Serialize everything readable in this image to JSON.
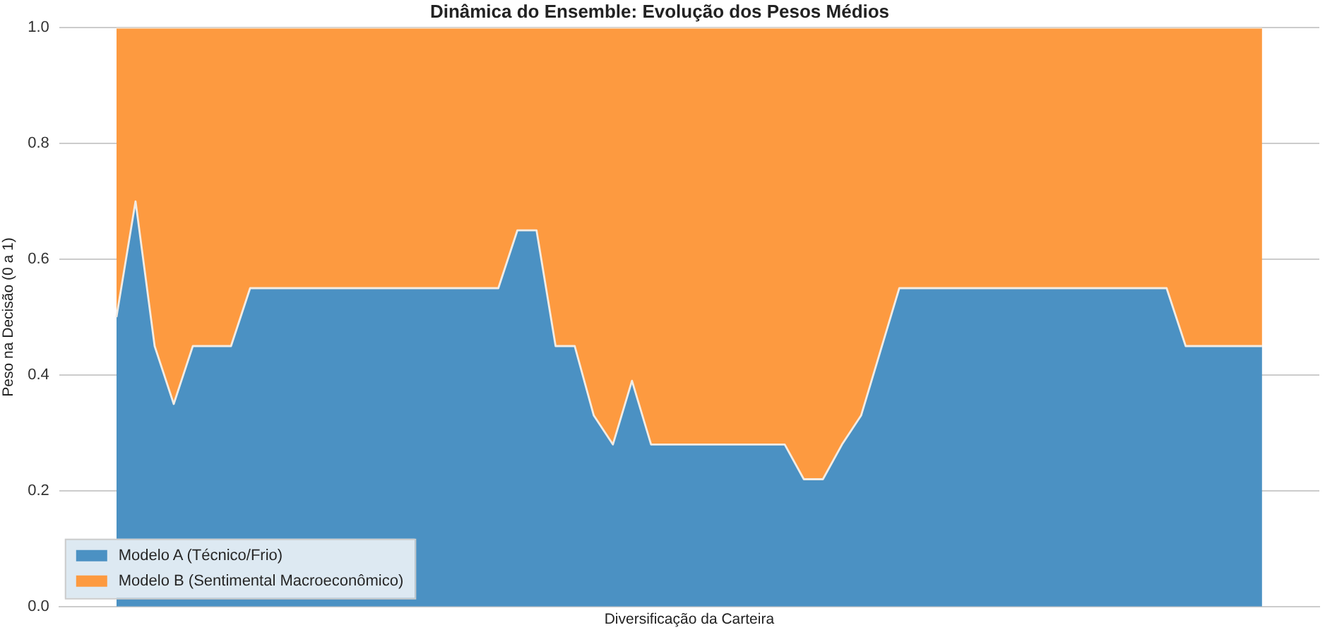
{
  "chart_data": {
    "type": "area",
    "title": "Dinâmica do Ensemble: Evolução dos Pesos Médios",
    "xlabel": "Diversificação da Carteira",
    "ylabel": "Peso na Decisão (0 a 1)",
    "categories": [
      null,
      null,
      null,
      null,
      null,
      null,
      null,
      null,
      null,
      null,
      null,
      null,
      null,
      null,
      null,
      null,
      null,
      null,
      null,
      null,
      null,
      null,
      null,
      null,
      null,
      null,
      null,
      null,
      null,
      null,
      null,
      null,
      null,
      null,
      null,
      null,
      null,
      null,
      null,
      null,
      null,
      null,
      null,
      null,
      null,
      null,
      null,
      null,
      null,
      null,
      null,
      null,
      null,
      null,
      null,
      null,
      null,
      null,
      null,
      null,
      null
    ],
    "stacked": true,
    "series": [
      {
        "name": "Modelo A (Técnico/Frio)",
        "color": "#4b91c3",
        "values": [
          0.5,
          0.7,
          0.45,
          0.35,
          0.45,
          0.45,
          0.45,
          0.55,
          0.55,
          0.55,
          0.55,
          0.55,
          0.55,
          0.55,
          0.55,
          0.55,
          0.55,
          0.55,
          0.55,
          0.55,
          0.55,
          0.65,
          0.65,
          0.45,
          0.45,
          0.33,
          0.28,
          0.39,
          0.28,
          0.28,
          0.28,
          0.28,
          0.28,
          0.28,
          0.28,
          0.28,
          0.22,
          0.22,
          0.28,
          0.33,
          0.44,
          0.55,
          0.55,
          0.55,
          0.55,
          0.55,
          0.55,
          0.55,
          0.55,
          0.55,
          0.55,
          0.55,
          0.55,
          0.55,
          0.55,
          0.55,
          0.45,
          0.45,
          0.45,
          0.45,
          0.45
        ]
      },
      {
        "name": "Modelo B (Sentimental Macroeconômico)",
        "color": "#fd9a40",
        "values": [
          0.5,
          0.3,
          0.55,
          0.65,
          0.55,
          0.55,
          0.55,
          0.45,
          0.45,
          0.45,
          0.45,
          0.45,
          0.45,
          0.45,
          0.45,
          0.45,
          0.45,
          0.45,
          0.45,
          0.45,
          0.45,
          0.35,
          0.35,
          0.55,
          0.55,
          0.67,
          0.72,
          0.61,
          0.72,
          0.72,
          0.72,
          0.72,
          0.72,
          0.72,
          0.72,
          0.72,
          0.78,
          0.78,
          0.72,
          0.67,
          0.56,
          0.45,
          0.45,
          0.45,
          0.45,
          0.45,
          0.45,
          0.45,
          0.45,
          0.45,
          0.45,
          0.45,
          0.45,
          0.45,
          0.45,
          0.45,
          0.55,
          0.55,
          0.55,
          0.55,
          0.55
        ]
      }
    ],
    "ylim": [
      0,
      1
    ],
    "yticks": [
      {
        "value": 0,
        "label": "0.0"
      },
      0.2,
      0.4,
      0.6,
      0.8,
      {
        "value": 1,
        "label": "1.0"
      }
    ],
    "grid": "y",
    "legend": "bottom left",
    "tick_labels": "y"
  }
}
